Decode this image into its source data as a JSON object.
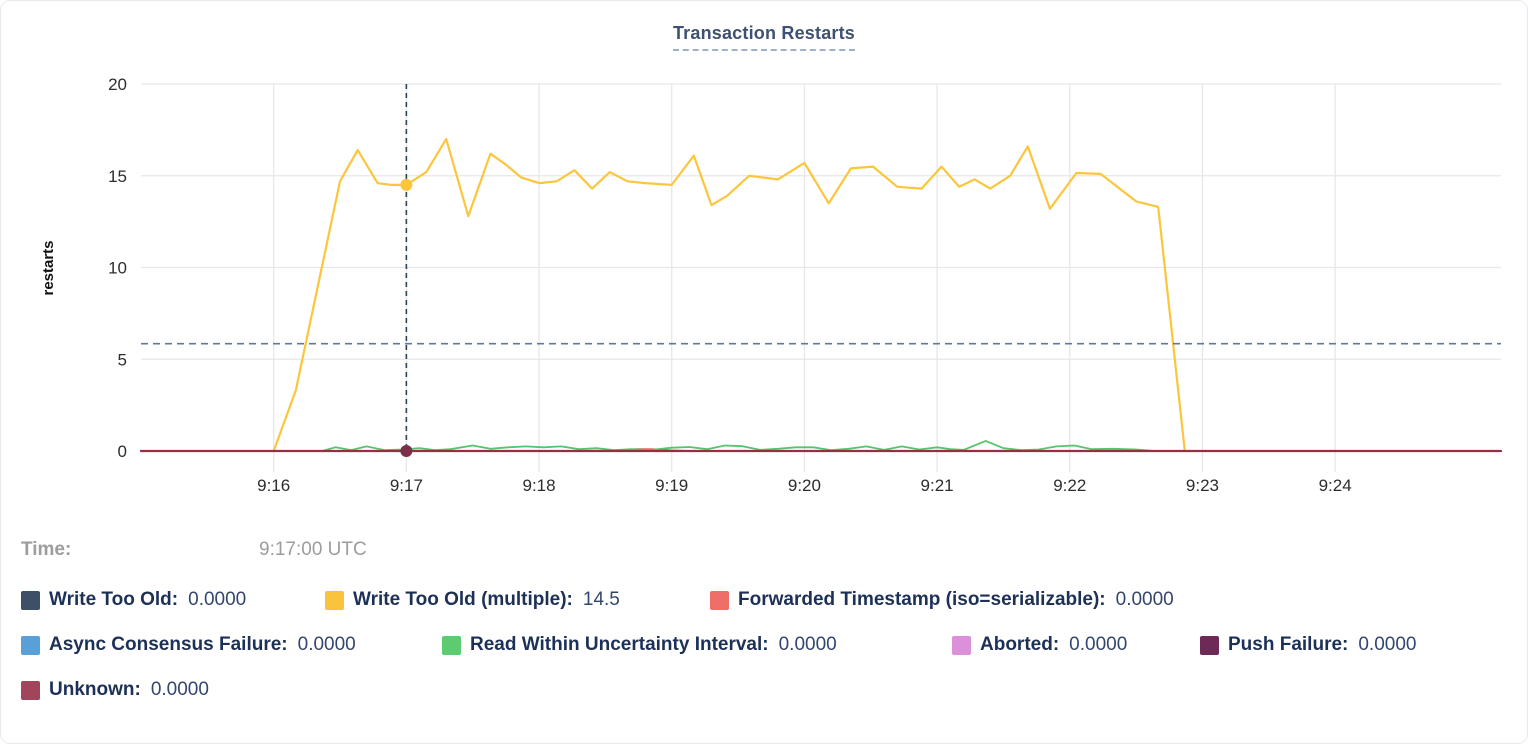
{
  "header": {
    "title": "Transaction Restarts"
  },
  "tooltip": {
    "time_label": "Time:",
    "time_value": "9:17:00 UTC",
    "rows": [
      [
        {
          "label": "Write Too Old:",
          "value": "0.0000",
          "color": "#3e5068"
        },
        {
          "label": "Write Too Old (multiple):",
          "value": "14.5",
          "color": "#f9c33d"
        },
        {
          "label": "Forwarded Timestamp (iso=serializable):",
          "value": "0.0000",
          "color": "#ee6f67"
        }
      ],
      [
        {
          "label": "Async Consensus Failure:",
          "value": "0.0000",
          "color": "#59a0d6"
        },
        {
          "label": "Read Within Uncertainty Interval:",
          "value": "0.0000",
          "color": "#5ecb70"
        },
        {
          "label": "Aborted:",
          "value": "0.0000",
          "color": "#dd90da"
        },
        {
          "label": "Push Failure:",
          "value": "0.0000",
          "color": "#6e2a56"
        }
      ],
      [
        {
          "label": "Unknown:",
          "value": "0.0000",
          "color": "#a2445c"
        }
      ]
    ]
  },
  "chart_data": {
    "type": "line",
    "title": "Transaction Restarts",
    "xlabel": "",
    "ylabel": "restarts",
    "ylim": [
      0,
      20
    ],
    "y_ticks": [
      0,
      5,
      10,
      15,
      20
    ],
    "x_domain_seconds": [
      0,
      615
    ],
    "x_ticks": [
      {
        "t": 60,
        "label": "9:16"
      },
      {
        "t": 120,
        "label": "9:17"
      },
      {
        "t": 180,
        "label": "9:18"
      },
      {
        "t": 240,
        "label": "9:19"
      },
      {
        "t": 300,
        "label": "9:20"
      },
      {
        "t": 360,
        "label": "9:21"
      },
      {
        "t": 420,
        "label": "9:22"
      },
      {
        "t": 480,
        "label": "9:23"
      },
      {
        "t": 540,
        "label": "9:24"
      }
    ],
    "grid": true,
    "legend_position": "bottom",
    "avg_line_value": 5.85,
    "crosshair": {
      "t": 120,
      "time_label": "9:17:00 UTC",
      "points": [
        {
          "series": "Write Too Old (multiple)",
          "value": 14.5,
          "color": "#fcc63c"
        },
        {
          "series": "Unknown",
          "value": 0,
          "color": "#7d2e49"
        }
      ]
    },
    "series": [
      {
        "name": "Write Too Old",
        "color": "#3e5068",
        "points": [
          [
            60,
            0
          ],
          [
            472,
            0
          ]
        ]
      },
      {
        "name": "Async Consensus Failure",
        "color": "#59a0d6",
        "points": [
          [
            60,
            0
          ],
          [
            472,
            0
          ]
        ]
      },
      {
        "name": "Aborted",
        "color": "#dd90da",
        "points": [
          [
            60,
            0
          ],
          [
            472,
            0
          ]
        ]
      },
      {
        "name": "Push Failure",
        "color": "#6e2a56",
        "points": [
          [
            60,
            0
          ],
          [
            472,
            0
          ]
        ]
      },
      {
        "name": "Forwarded Timestamp (iso=serializable)",
        "color": "#e0564e",
        "points": [
          [
            60,
            0
          ],
          [
            208,
            0
          ],
          [
            216,
            0.05
          ],
          [
            224,
            0.1
          ],
          [
            232,
            0.09
          ],
          [
            240,
            0.03
          ],
          [
            248,
            0
          ],
          [
            472,
            0
          ]
        ]
      },
      {
        "name": "Read Within Uncertainty Interval",
        "color": "#55c46a",
        "points": [
          [
            82,
            0
          ],
          [
            88,
            0.2
          ],
          [
            95,
            0.05
          ],
          [
            102,
            0.25
          ],
          [
            110,
            0.05
          ],
          [
            118,
            0.08
          ],
          [
            126,
            0.15
          ],
          [
            133,
            0.05
          ],
          [
            140,
            0.1
          ],
          [
            150,
            0.3
          ],
          [
            158,
            0.12
          ],
          [
            166,
            0.2
          ],
          [
            174,
            0.25
          ],
          [
            182,
            0.2
          ],
          [
            190,
            0.25
          ],
          [
            198,
            0.1
          ],
          [
            206,
            0.15
          ],
          [
            214,
            0.05
          ],
          [
            222,
            0.1
          ],
          [
            230,
            0.05
          ],
          [
            240,
            0.18
          ],
          [
            248,
            0.22
          ],
          [
            256,
            0.1
          ],
          [
            264,
            0.3
          ],
          [
            272,
            0.26
          ],
          [
            280,
            0.06
          ],
          [
            288,
            0.12
          ],
          [
            296,
            0.2
          ],
          [
            304,
            0.2
          ],
          [
            312,
            0.05
          ],
          [
            320,
            0.12
          ],
          [
            328,
            0.25
          ],
          [
            336,
            0.06
          ],
          [
            344,
            0.25
          ],
          [
            352,
            0.08
          ],
          [
            360,
            0.2
          ],
          [
            366,
            0.1
          ],
          [
            372,
            0.06
          ],
          [
            382,
            0.55
          ],
          [
            390,
            0.15
          ],
          [
            398,
            0.05
          ],
          [
            406,
            0.08
          ],
          [
            414,
            0.25
          ],
          [
            422,
            0.3
          ],
          [
            430,
            0.1
          ],
          [
            440,
            0.12
          ],
          [
            450,
            0.08
          ],
          [
            458,
            0
          ]
        ]
      },
      {
        "name": "Write Too Old (multiple)",
        "color": "#fcc63c",
        "points": [
          [
            60,
            0
          ],
          [
            70,
            3.3
          ],
          [
            80,
            9
          ],
          [
            90,
            14.7
          ],
          [
            98,
            16.4
          ],
          [
            107,
            14.6
          ],
          [
            113,
            14.5
          ],
          [
            120,
            14.5
          ],
          [
            129,
            15.2
          ],
          [
            138,
            17
          ],
          [
            148,
            12.8
          ],
          [
            158,
            16.2
          ],
          [
            165,
            15.6
          ],
          [
            172,
            14.9
          ],
          [
            180,
            14.6
          ],
          [
            188,
            14.7
          ],
          [
            196,
            15.3
          ],
          [
            204,
            14.3
          ],
          [
            212,
            15.2
          ],
          [
            220,
            14.7
          ],
          [
            228,
            14.6
          ],
          [
            240,
            14.5
          ],
          [
            250,
            16.1
          ],
          [
            258,
            13.4
          ],
          [
            265,
            13.9
          ],
          [
            275,
            15
          ],
          [
            288,
            14.8
          ],
          [
            300,
            15.7
          ],
          [
            311,
            13.5
          ],
          [
            321,
            15.4
          ],
          [
            331,
            15.5
          ],
          [
            342,
            14.4
          ],
          [
            353,
            14.3
          ],
          [
            362,
            15.5
          ],
          [
            370,
            14.4
          ],
          [
            377,
            14.8
          ],
          [
            384,
            14.3
          ],
          [
            393,
            15
          ],
          [
            401,
            16.6
          ],
          [
            411,
            13.2
          ],
          [
            423,
            15.15
          ],
          [
            434,
            15.1
          ],
          [
            450,
            13.6
          ],
          [
            460,
            13.3
          ],
          [
            472,
            0
          ]
        ]
      },
      {
        "name": "Unknown",
        "color": "#962f44",
        "points": [
          [
            0,
            0
          ],
          [
            615,
            0
          ]
        ]
      }
    ]
  },
  "colors": {
    "grid": "#e7e7e7",
    "crosshair": "#2c4059",
    "avg_line": "#5d7b9e",
    "title": "#3e5170"
  }
}
